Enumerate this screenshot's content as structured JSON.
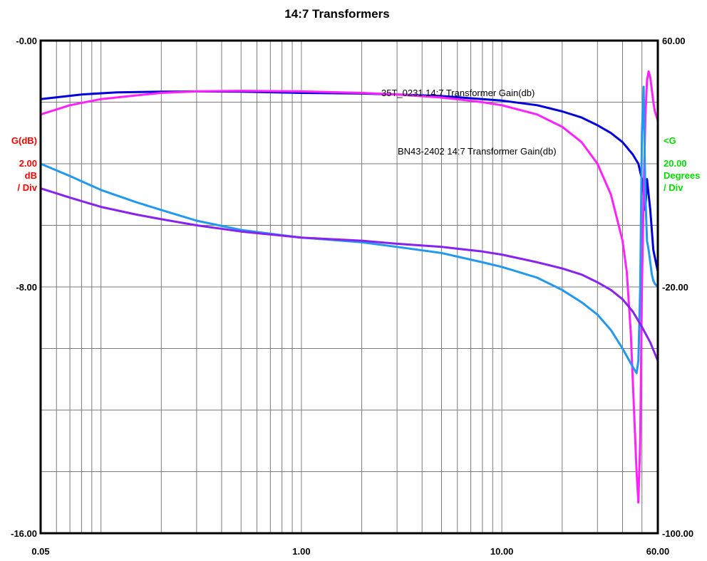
{
  "chart_data": {
    "type": "line",
    "title": "14:7 Transformers",
    "x_scale": "log",
    "xlim": [
      0.05,
      60
    ],
    "x_ticks": [
      "0.05",
      "1.00",
      "10.00",
      "60.00"
    ],
    "left_axis": {
      "label": "G(dB)",
      "unit_lines": [
        "2.00",
        "dB",
        "/ Div"
      ],
      "ylim": [
        -16,
        0
      ],
      "ticks": [
        {
          "value": 0,
          "label": "-0.00"
        },
        {
          "value": -8,
          "label": "-8.00"
        },
        {
          "value": -16,
          "label": "-16.00"
        }
      ],
      "color": "#ff0000"
    },
    "right_axis": {
      "label": "<G",
      "unit_lines": [
        "20.00",
        "Degrees",
        "/ Div"
      ],
      "ylim": [
        -100,
        60
      ],
      "ticks": [
        {
          "value": 60,
          "label": "60.00"
        },
        {
          "value": -20,
          "label": "-20.00"
        },
        {
          "value": -100,
          "label": "-100.00"
        }
      ],
      "color": "#00dd00"
    },
    "grid": true,
    "series": [
      {
        "name": "35T_0231 14:7 Transformer Gain(db)",
        "axis": "left",
        "color": "#0000dd",
        "x": [
          0.05,
          0.08,
          0.12,
          0.2,
          0.3,
          0.5,
          1.0,
          2.0,
          3.0,
          5.0,
          8.0,
          10,
          15,
          20,
          25,
          30,
          35,
          40,
          45,
          48,
          50,
          52,
          53,
          55,
          57,
          60
        ],
        "y": [
          -1.9,
          -1.75,
          -1.68,
          -1.66,
          -1.65,
          -1.66,
          -1.7,
          -1.72,
          -1.75,
          -1.8,
          -1.9,
          -1.95,
          -2.1,
          -2.3,
          -2.5,
          -2.75,
          -3.0,
          -3.3,
          -3.7,
          -4.0,
          -4.5,
          -5.5,
          -4.5,
          -5.5,
          -6.8,
          -7.5
        ]
      },
      {
        "name": "BN43-2402 14:7 Transformer Gain(db)",
        "axis": "left",
        "color": "#ff22ff",
        "x": [
          0.05,
          0.07,
          0.1,
          0.15,
          0.2,
          0.3,
          0.5,
          1.0,
          2.0,
          3.0,
          5.0,
          8.0,
          10,
          15,
          20,
          25,
          30,
          35,
          40,
          42,
          44,
          46,
          47,
          48,
          49,
          50,
          51,
          52,
          53,
          54,
          55,
          56,
          57,
          58,
          60
        ],
        "y": [
          -2.4,
          -2.1,
          -1.9,
          -1.78,
          -1.7,
          -1.65,
          -1.63,
          -1.65,
          -1.7,
          -1.75,
          -1.85,
          -2.0,
          -2.1,
          -2.4,
          -2.8,
          -3.3,
          -4.0,
          -5.0,
          -6.5,
          -7.5,
          -9.5,
          -12.5,
          -14.0,
          -15.0,
          -13.0,
          -8.0,
          -5.0,
          -2.5,
          -1.3,
          -1.0,
          -1.2,
          -1.6,
          -2.0,
          -2.3,
          -2.6
        ]
      },
      {
        "axis": "right",
        "color": "#2299ee",
        "x": [
          0.05,
          0.07,
          0.1,
          0.15,
          0.2,
          0.3,
          0.5,
          1.0,
          2.0,
          3.0,
          5.0,
          8.0,
          10,
          15,
          20,
          25,
          30,
          35,
          40,
          45,
          47,
          48,
          49,
          50,
          51,
          52,
          53,
          54,
          55,
          56,
          57,
          58,
          60
        ],
        "y": [
          20,
          16,
          11.5,
          7.5,
          5,
          1.5,
          -1.5,
          -4,
          -5.5,
          -7,
          -9,
          -12,
          -13.5,
          -17,
          -21,
          -25,
          -29,
          -34,
          -40,
          -46,
          -48,
          -44,
          -20,
          30,
          45,
          10,
          -5,
          -8,
          -12,
          -16,
          -18,
          -19,
          -20
        ]
      },
      {
        "axis": "right",
        "color": "#8822ee",
        "x": [
          0.05,
          0.07,
          0.1,
          0.15,
          0.2,
          0.3,
          0.5,
          1.0,
          2.0,
          3.0,
          5.0,
          8.0,
          10,
          15,
          20,
          25,
          30,
          35,
          40,
          45,
          50,
          55,
          60
        ],
        "y": [
          12,
          9,
          6,
          3.5,
          2,
          0,
          -2,
          -4,
          -5,
          -6,
          -7,
          -8.5,
          -9.5,
          -12,
          -14,
          -16,
          -18.5,
          -21,
          -24,
          -28,
          -33,
          -38,
          -44
        ]
      }
    ],
    "annotations": [
      "35T_0231 14:7 Transformer Gain(db)",
      "BN43-2402 14:7 Transformer Gain(db)"
    ]
  }
}
